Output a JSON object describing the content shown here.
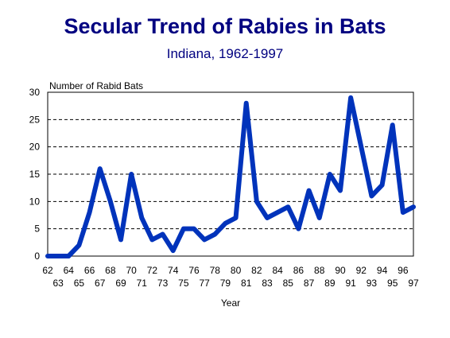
{
  "chart_data": {
    "type": "line",
    "title": "Secular Trend of Rabies in Bats",
    "subtitle": "Indiana, 1962-1997",
    "ylabel": "Number of Rabid Bats",
    "xlabel": "Year",
    "ylim": [
      0,
      30
    ],
    "yticks": [
      0,
      5,
      10,
      15,
      20,
      25,
      30
    ],
    "grid": "horizontal dashed",
    "x": [
      "62",
      "63",
      "64",
      "65",
      "66",
      "67",
      "68",
      "69",
      "70",
      "71",
      "72",
      "73",
      "74",
      "75",
      "76",
      "77",
      "78",
      "79",
      "80",
      "81",
      "82",
      "83",
      "84",
      "85",
      "86",
      "87",
      "88",
      "89",
      "90",
      "91",
      "92",
      "93",
      "94",
      "95",
      "96",
      "97"
    ],
    "series": [
      {
        "name": "",
        "color": "#0033bb",
        "values": [
          0,
          0,
          0,
          2,
          8,
          16,
          10,
          3,
          15,
          7,
          3,
          4,
          1,
          5,
          5,
          3,
          4,
          6,
          7,
          28,
          10,
          7,
          8,
          9,
          5,
          12,
          7,
          15,
          12,
          29,
          20,
          11,
          13,
          24,
          8,
          9
        ]
      }
    ]
  }
}
